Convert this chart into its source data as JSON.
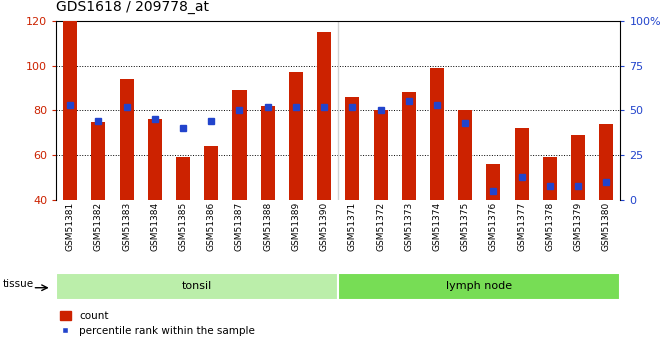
{
  "title": "GDS1618 / 209778_at",
  "categories": [
    "GSM51381",
    "GSM51382",
    "GSM51383",
    "GSM51384",
    "GSM51385",
    "GSM51386",
    "GSM51387",
    "GSM51388",
    "GSM51389",
    "GSM51390",
    "GSM51371",
    "GSM51372",
    "GSM51373",
    "GSM51374",
    "GSM51375",
    "GSM51376",
    "GSM51377",
    "GSM51378",
    "GSM51379",
    "GSM51380"
  ],
  "count_values": [
    120,
    75,
    94,
    76,
    59,
    64,
    89,
    82,
    97,
    115,
    86,
    80,
    88,
    99,
    80,
    56,
    72,
    59,
    69,
    74
  ],
  "percentile_values": [
    53,
    44,
    52,
    45,
    40,
    44,
    50,
    52,
    52,
    52,
    52,
    50,
    55,
    53,
    43,
    5,
    13,
    8,
    8,
    10
  ],
  "baseline": 40,
  "ylim_left": [
    40,
    120
  ],
  "ylim_right": [
    0,
    100
  ],
  "yticks_left": [
    40,
    60,
    80,
    100,
    120
  ],
  "yticks_right": [
    0,
    25,
    50,
    75,
    100
  ],
  "groups": [
    {
      "label": "tonsil",
      "start": 0,
      "end": 10
    },
    {
      "label": "lymph node",
      "start": 10,
      "end": 20
    }
  ],
  "bar_color": "#cc2200",
  "percentile_color": "#2244cc",
  "group_colors": [
    "#bbeeaa",
    "#77dd55"
  ],
  "tissue_label": "tissue",
  "legend_count": "count",
  "legend_percentile": "percentile rank within the sample",
  "title_fontsize": 10,
  "axis_color_left": "#cc2200",
  "axis_color_right": "#2244cc",
  "grid_yticks": [
    60,
    80,
    100
  ]
}
